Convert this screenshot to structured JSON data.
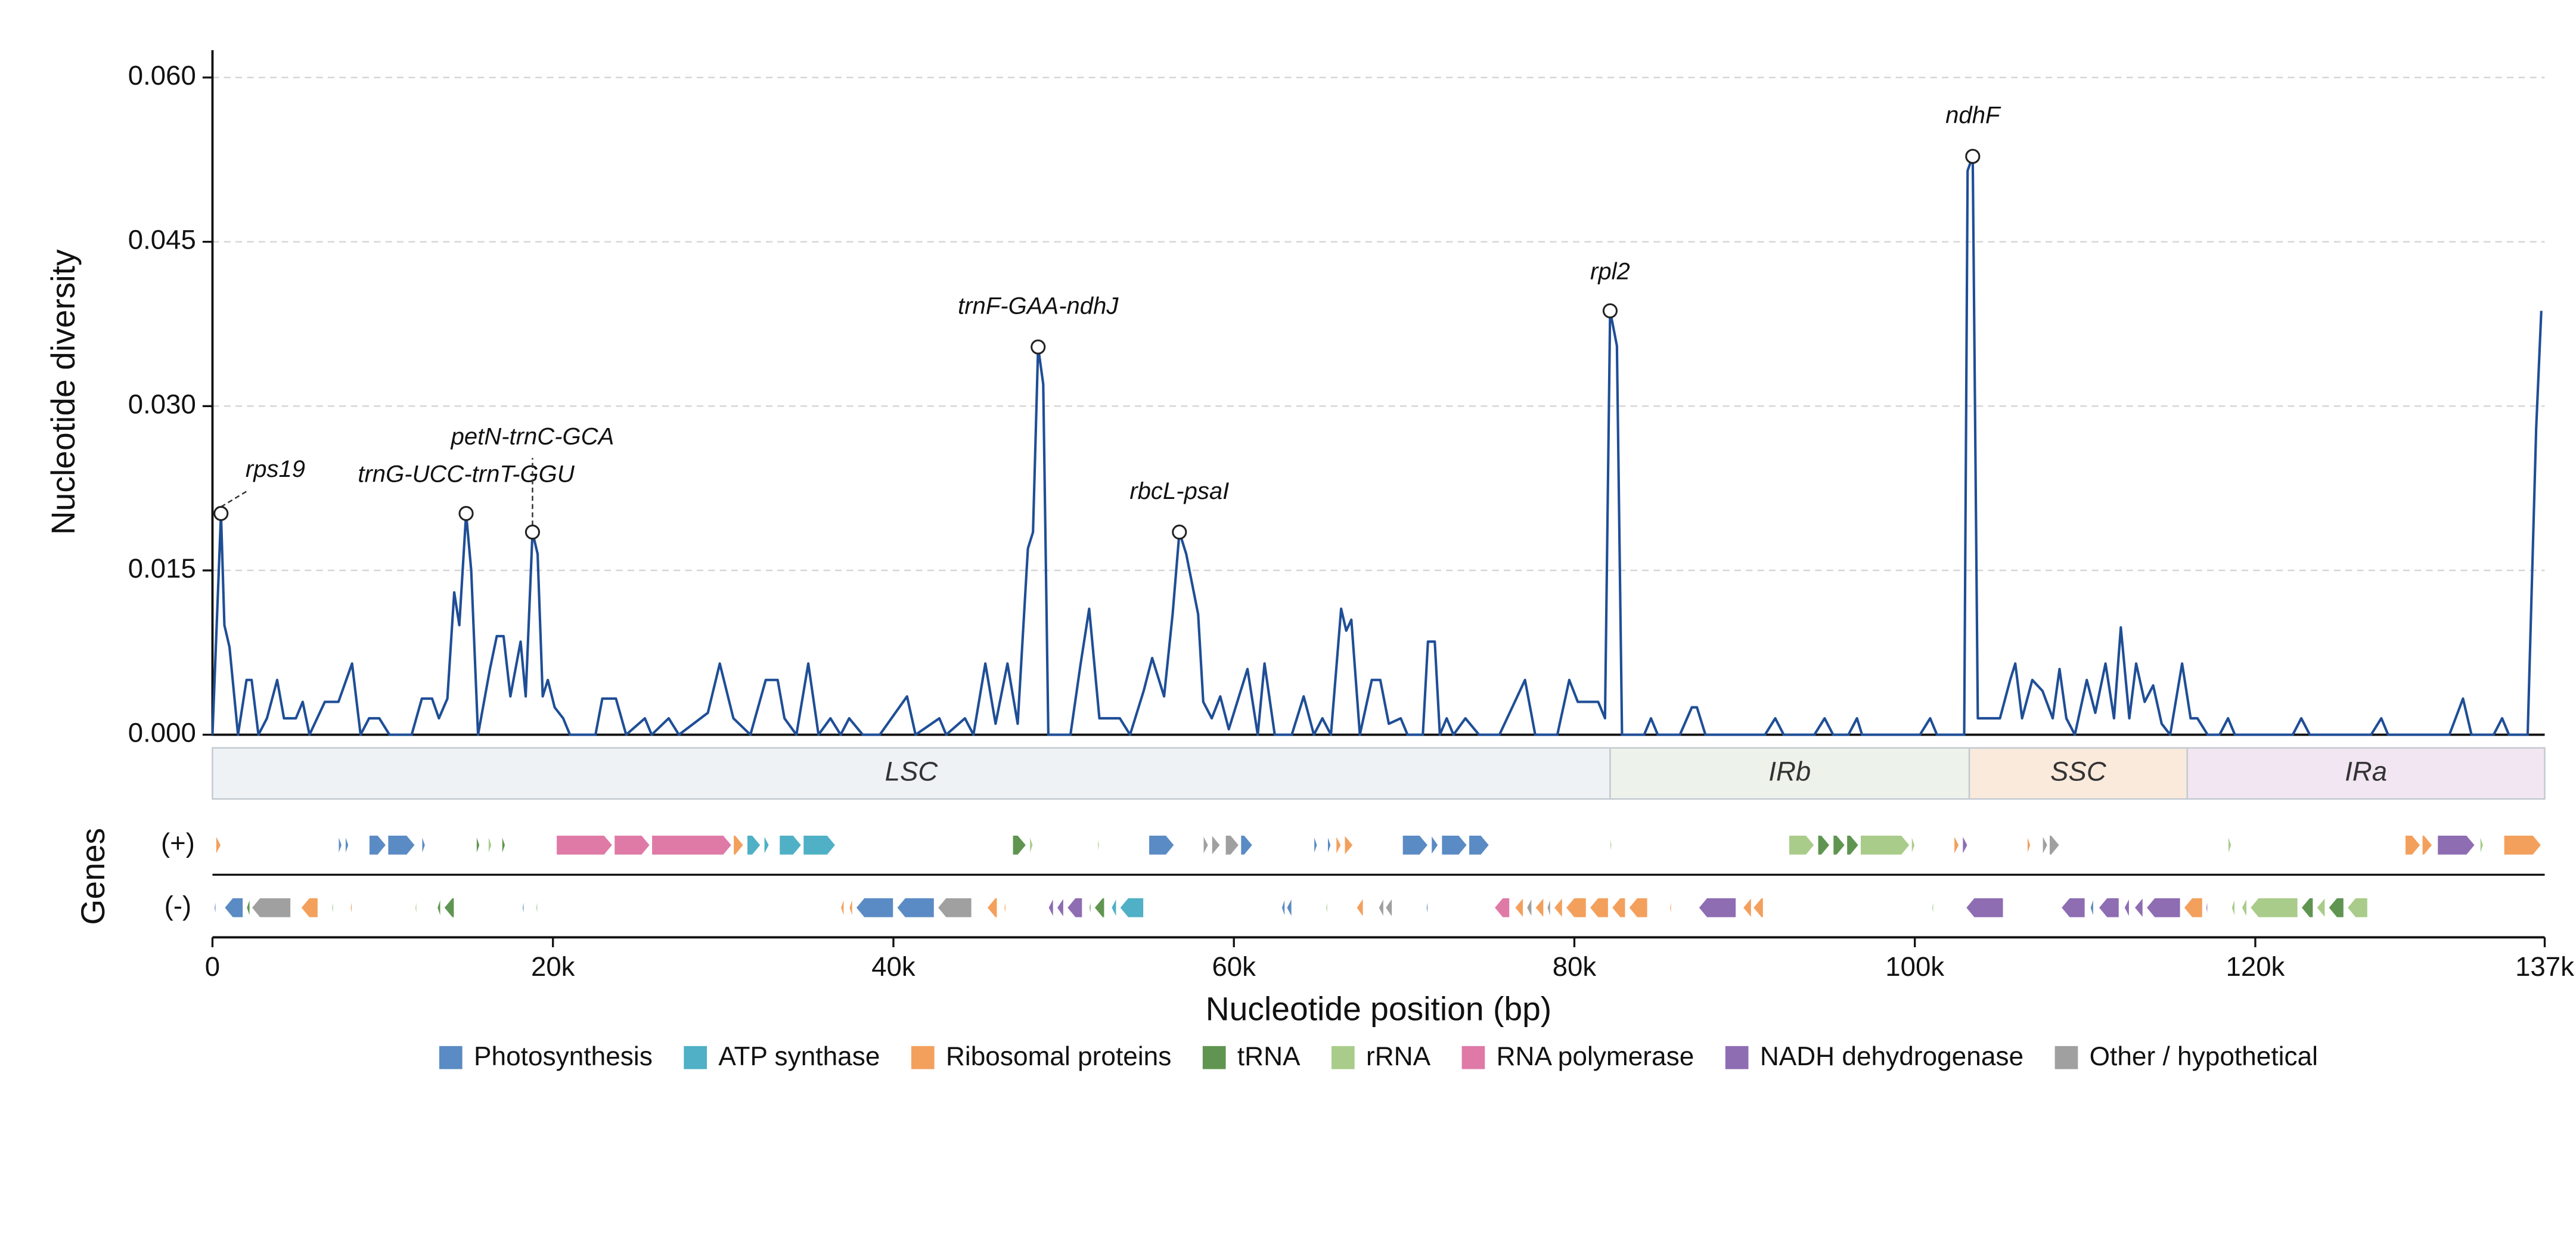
{
  "chart_data": {
    "type": "line",
    "ylabel": "Nucleotide diversity",
    "xlabel": "Nucleotide position (bp)",
    "color": "#1f4e96",
    "grid": true,
    "xlim": [
      0,
      137000
    ],
    "xticks": [
      0,
      {
        "value": 20000,
        "label": "20k"
      },
      {
        "value": 40000,
        "label": "40k"
      },
      {
        "value": 60000,
        "label": "60k"
      },
      {
        "value": 80000,
        "label": "80k"
      },
      {
        "value": 100000,
        "label": "100k"
      },
      {
        "value": 120000,
        "label": "120k"
      },
      {
        "value": 137000,
        "label": "137k"
      }
    ],
    "ylim": [
      0,
      0.0625
    ],
    "yticks": [
      {
        "value": 0,
        "label": "0.000"
      },
      {
        "value": 0.015,
        "label": "0.015"
      },
      {
        "value": 0.03,
        "label": "0.030"
      },
      {
        "value": 0.045,
        "label": "0.045"
      },
      {
        "value": 0.06,
        "label": "0.060"
      }
    ],
    "x": [
      0,
      500,
      700,
      1000,
      1500,
      2000,
      2300,
      2700,
      3200,
      3800,
      4200,
      4900,
      5300,
      5700,
      6600,
      7400,
      8200,
      8700,
      9200,
      9800,
      10400,
      11700,
      12300,
      12900,
      13300,
      13800,
      14200,
      14500,
      14900,
      15200,
      15600,
      16300,
      16700,
      17100,
      17500,
      18100,
      18400,
      18800,
      19100,
      19400,
      19700,
      20100,
      20600,
      21000,
      22500,
      22900,
      23700,
      24300,
      25400,
      25800,
      26800,
      27400,
      29100,
      29800,
      30600,
      31600,
      32500,
      33200,
      33600,
      34300,
      35000,
      35600,
      36300,
      36900,
      37400,
      38200,
      39200,
      40800,
      41300,
      42700,
      43100,
      44200,
      44700,
      45400,
      46000,
      46700,
      47300,
      47900,
      48200,
      48500,
      48800,
      49100,
      50400,
      51000,
      51500,
      52100,
      52600,
      53300,
      53900,
      54700,
      55200,
      55900,
      56400,
      56800,
      57200,
      57900,
      58200,
      58700,
      59200,
      59700,
      60800,
      61400,
      61800,
      62400,
      63400,
      64100,
      64700,
      65200,
      65700,
      66300,
      66600,
      66900,
      67400,
      68100,
      68600,
      69100,
      69800,
      70200,
      71100,
      71400,
      71800,
      72100,
      72500,
      72900,
      73600,
      74400,
      75600,
      77100,
      77700,
      79000,
      79700,
      80200,
      81400,
      81800,
      82100,
      82500,
      82800,
      84100,
      84500,
      84900,
      86200,
      86900,
      87200,
      87700,
      91200,
      91800,
      92300,
      94100,
      94700,
      95200,
      96100,
      96600,
      96900,
      100300,
      100900,
      101300,
      102900,
      103100,
      103400,
      103700,
      105000,
      105600,
      105900,
      106300,
      106900,
      107500,
      108100,
      108500,
      108900,
      109400,
      110100,
      110600,
      111200,
      111700,
      112100,
      112600,
      113000,
      113500,
      114000,
      114500,
      115000,
      115700,
      116200,
      116600,
      117200,
      117900,
      118400,
      118800,
      122200,
      122700,
      123200,
      126800,
      127400,
      127800,
      131400,
      132200,
      132700,
      134000,
      134500,
      134900,
      136000,
      136500,
      136800
    ],
    "values": [
      0,
      0.0202,
      0.01,
      0.008,
      0,
      0.005,
      0.005,
      0,
      0.0015,
      0.005,
      0.0015,
      0.0015,
      0.003,
      0,
      0.003,
      0.003,
      0.0065,
      0,
      0.0015,
      0.0015,
      0,
      0,
      0.0033,
      0.0033,
      0.0015,
      0.0033,
      0.013,
      0.01,
      0.0202,
      0.015,
      0,
      0.006,
      0.009,
      0.009,
      0.0035,
      0.0085,
      0.0035,
      0.0185,
      0.0165,
      0.0035,
      0.005,
      0.0025,
      0.0015,
      0,
      0,
      0.0033,
      0.0033,
      0,
      0.0015,
      0,
      0.0015,
      0,
      0.002,
      0.0065,
      0.0015,
      0,
      0.005,
      0.005,
      0.0015,
      0,
      0.0065,
      0,
      0.0015,
      0,
      0.0015,
      0,
      0,
      0.0035,
      0,
      0.0015,
      0,
      0.0015,
      0,
      0.0065,
      0.001,
      0.0065,
      0.001,
      0.017,
      0.0185,
      0.0354,
      0.032,
      0,
      0,
      0.0065,
      0.0115,
      0.0015,
      0.0015,
      0.0015,
      0,
      0.004,
      0.007,
      0.0035,
      0.011,
      0.0185,
      0.0165,
      0.011,
      0.003,
      0.0015,
      0.0035,
      0.0005,
      0.006,
      0,
      0.0065,
      0,
      0,
      0.0035,
      0,
      0.0015,
      0,
      0.0115,
      0.0095,
      0.0105,
      0,
      0.005,
      0.005,
      0.001,
      0.0015,
      0,
      0,
      0.0085,
      0.0085,
      0,
      0.0015,
      0,
      0.0015,
      0,
      0,
      0.005,
      0,
      0,
      0.005,
      0.003,
      0.003,
      0.0015,
      0.0387,
      0.0355,
      0,
      0,
      0.0015,
      0,
      0,
      0.0025,
      0.0025,
      0,
      0,
      0.0015,
      0,
      0,
      0.0015,
      0,
      0,
      0.0015,
      0,
      0,
      0.0015,
      0,
      0,
      0.0515,
      0.0528,
      0.0015,
      0.0015,
      0.005,
      0.0065,
      0.0015,
      0.005,
      0.004,
      0.0015,
      0.006,
      0.0015,
      0,
      0.005,
      0.002,
      0.0065,
      0.0015,
      0.0098,
      0.0015,
      0.0065,
      0.003,
      0.0045,
      0.001,
      0,
      0.0065,
      0.0015,
      0.0015,
      0,
      0,
      0.0015,
      0,
      0,
      0.0015,
      0,
      0,
      0.0015,
      0,
      0,
      0.0033,
      0,
      0,
      0.0015,
      0,
      0,
      0.028,
      0.0387
    ],
    "annotations": [
      {
        "label": "rps19",
        "x": 500,
        "y": 0.0202
      },
      {
        "label": "trnG-UCC-trnT-GGU",
        "x": 14900,
        "y": 0.0202
      },
      {
        "label": "petN-trnC-GCA",
        "x": 18800,
        "y": 0.0185
      },
      {
        "label": "trnF-GAA-ndhJ",
        "x": 48500,
        "y": 0.0354
      },
      {
        "label": "rbcL-psaI",
        "x": 56800,
        "y": 0.0185
      },
      {
        "label": "rpl2",
        "x": 82100,
        "y": 0.0387
      },
      {
        "label": "ndhF",
        "x": 103400,
        "y": 0.0528
      }
    ],
    "regions": [
      {
        "label": "LSC",
        "start": 0,
        "end": 82100,
        "color": "#eef2f5"
      },
      {
        "label": "IRb",
        "start": 82100,
        "end": 103200,
        "color": "#edf3ea"
      },
      {
        "label": "SSC",
        "start": 103200,
        "end": 116000,
        "color": "#f9eadc"
      },
      {
        "label": "IRa",
        "start": 116000,
        "end": 137000,
        "color": "#f1e6f1"
      }
    ],
    "gene_track_title": "Genes",
    "gene_tracks": [
      {
        "label": "(+)",
        "groups": [
          {
            "category": "Photosynthesis",
            "spans": [
              [
                7400,
                7600
              ],
              [
                7800,
                8000
              ],
              [
                9200,
                10200
              ],
              [
                10300,
                11900
              ],
              [
                12300,
                12500
              ],
              [
                55000,
                56500
              ],
              [
                60400,
                61100
              ],
              [
                64700,
                64900
              ],
              [
                65500,
                65700
              ],
              [
                69900,
                71400
              ],
              [
                71600,
                72000
              ],
              [
                72200,
                73700
              ],
              [
                73800,
                75000
              ]
            ]
          },
          {
            "category": "ATP synthase",
            "spans": [
              [
                31400,
                32200
              ],
              [
                32400,
                32700
              ],
              [
                33300,
                34600
              ],
              [
                34700,
                36600
              ]
            ]
          },
          {
            "category": "Ribosomal proteins",
            "spans": [
              [
                200,
                500
              ],
              [
                30600,
                31200
              ],
              [
                66000,
                66300
              ],
              [
                66500,
                67000
              ],
              [
                102300,
                102600
              ],
              [
                106600,
                106800
              ],
              [
                128800,
                129700
              ],
              [
                129800,
                130400
              ],
              [
                134600,
                136800
              ]
            ]
          },
          {
            "category": "tRNA",
            "spans": [
              [
                15500,
                15700
              ],
              [
                17000,
                17200
              ],
              [
                47000,
                47800
              ],
              [
                94300,
                95000
              ],
              [
                95200,
                95900
              ],
              [
                96000,
                96700
              ]
            ]
          },
          {
            "category": "rRNA",
            "spans": [
              [
                16200,
                16400
              ],
              [
                48000,
                48200
              ],
              [
                52000,
                52100
              ],
              [
                82100,
                82200
              ],
              [
                92600,
                94100
              ],
              [
                96800,
                99700
              ],
              [
                99800,
                100000
              ],
              [
                118400,
                118600
              ],
              [
                133200,
                133400
              ]
            ]
          },
          {
            "category": "RNA polymerase",
            "spans": [
              [
                20200,
                23500
              ],
              [
                23600,
                25700
              ],
              [
                25800,
                30500
              ]
            ]
          },
          {
            "category": "NADH dehydrogenase",
            "spans": [
              [
                102800,
                103100
              ],
              [
                130700,
                132900
              ]
            ]
          },
          {
            "category": "Other / hypothetical",
            "spans": [
              [
                58200,
                58500
              ],
              [
                58700,
                59200
              ],
              [
                59500,
                60300
              ],
              [
                107500,
                107800
              ],
              [
                107900,
                108500
              ]
            ]
          }
        ]
      },
      {
        "label": "(-)",
        "groups": [
          {
            "category": "Photosynthesis",
            "spans": [
              [
                100,
                200
              ],
              [
                700,
                1800
              ],
              [
                18200,
                18300
              ],
              [
                37800,
                40000
              ],
              [
                40200,
                42400
              ],
              [
                62800,
                63000
              ],
              [
                63100,
                63400
              ],
              [
                71300,
                71400
              ],
              [
                110300,
                110500
              ]
            ]
          },
          {
            "category": "ATP synthase",
            "spans": [
              [
                52800,
                53100
              ],
              [
                53300,
                54700
              ]
            ]
          },
          {
            "category": "Ribosomal proteins",
            "spans": [
              [
                5200,
                6200
              ],
              [
                8100,
                8200
              ],
              [
                36900,
                37100
              ],
              [
                37400,
                37600
              ],
              [
                45500,
                46100
              ],
              [
                46500,
                46600
              ],
              [
                67200,
                67600
              ],
              [
                76500,
                77000
              ],
              [
                77700,
                78200
              ],
              [
                78800,
                79300
              ],
              [
                79500,
                80700
              ],
              [
                80900,
                82000
              ],
              [
                82200,
                83000
              ],
              [
                83200,
                84300
              ],
              [
                85600,
                85700
              ],
              [
                89900,
                90400
              ],
              [
                90500,
                91100
              ],
              [
                115800,
                116900
              ]
            ]
          },
          {
            "category": "tRNA",
            "spans": [
              [
                2000,
                2200
              ],
              [
                13200,
                13400
              ],
              [
                13600,
                14200
              ],
              [
                51500,
                51600
              ],
              [
                51800,
                52400
              ],
              [
                122700,
                123400
              ],
              [
                124300,
                125200
              ]
            ]
          },
          {
            "category": "rRNA",
            "spans": [
              [
                7000,
                7100
              ],
              [
                11900,
                12000
              ],
              [
                19000,
                19100
              ],
              [
                65400,
                65500
              ],
              [
                101000,
                101100
              ],
              [
                118600,
                118800
              ],
              [
                119200,
                119500
              ],
              [
                119700,
                122500
              ],
              [
                123600,
                124100
              ],
              [
                125400,
                126600
              ]
            ]
          },
          {
            "category": "RNA polymerase",
            "spans": [
              [
                75300,
                76200
              ]
            ]
          },
          {
            "category": "NADH dehydrogenase",
            "spans": [
              [
                49100,
                49400
              ],
              [
                49600,
                50000
              ],
              [
                50200,
                51100
              ],
              [
                87300,
                89500
              ],
              [
                103000,
                105200
              ],
              [
                108600,
                110000
              ],
              [
                110800,
                112000
              ],
              [
                112300,
                112600
              ],
              [
                112900,
                113400
              ],
              [
                113600,
                115600
              ],
              [
                117100,
                117200
              ]
            ]
          },
          {
            "category": "Other / hypothetical",
            "spans": [
              [
                2300,
                4600
              ],
              [
                42600,
                44600
              ],
              [
                68500,
                68800
              ],
              [
                68900,
                69300
              ],
              [
                77200,
                77500
              ],
              [
                78400,
                78600
              ]
            ]
          }
        ]
      }
    ],
    "legend": [
      {
        "name": "Photosynthesis",
        "color": "#5b8bc4"
      },
      {
        "name": "ATP synthase",
        "color": "#4fb0c6"
      },
      {
        "name": "Ribosomal proteins",
        "color": "#f3a05d"
      },
      {
        "name": "tRNA",
        "color": "#5f9550"
      },
      {
        "name": "rRNA",
        "color": "#a9cc8a"
      },
      {
        "name": "RNA polymerase",
        "color": "#df7aa7"
      },
      {
        "name": "NADH dehydrogenase",
        "color": "#8e6db3"
      },
      {
        "name": "Other / hypothetical",
        "color": "#a0a0a0"
      }
    ]
  }
}
